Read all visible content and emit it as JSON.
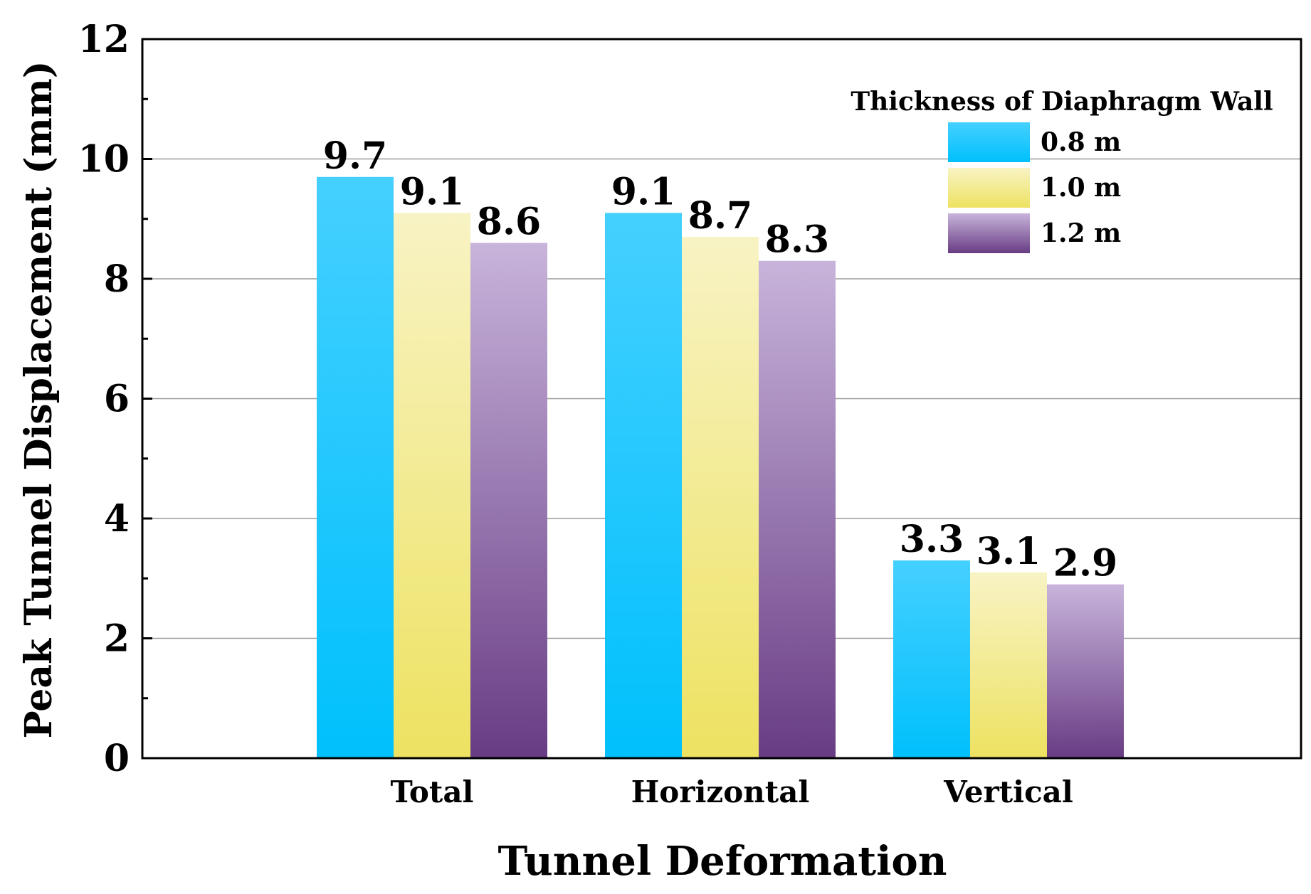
{
  "chart_data": {
    "type": "bar",
    "title": "",
    "xlabel": "Tunnel Deformation",
    "ylabel": "Peak Tunnel Displacement (mm)",
    "ylim": [
      0,
      12
    ],
    "yticks": [
      0,
      2,
      4,
      6,
      8,
      10,
      12
    ],
    "categories": [
      "Total",
      "Horizontal",
      "Vertical"
    ],
    "series": [
      {
        "name": "0.8 m",
        "values": [
          9.7,
          9.1,
          3.3
        ],
        "labels": [
          "9.7",
          "9.1",
          "3.3"
        ],
        "color_top": "#45d0ff",
        "color_bottom": "#00c0fc"
      },
      {
        "name": "1.0 m",
        "values": [
          9.1,
          8.7,
          3.1
        ],
        "labels": [
          "9.1",
          "8.7",
          "3.1"
        ],
        "color_top": "#f8f3c4",
        "color_bottom": "#ede261"
      },
      {
        "name": "1.2 m",
        "values": [
          8.6,
          8.3,
          2.9
        ],
        "labels": [
          "8.6",
          "8.3",
          "2.9"
        ],
        "color_top": "#c8b4db",
        "color_bottom": "#683c84"
      }
    ],
    "legend": {
      "title": "Thickness of Diaphragm Wall",
      "position": "top-right"
    },
    "grid": true
  }
}
